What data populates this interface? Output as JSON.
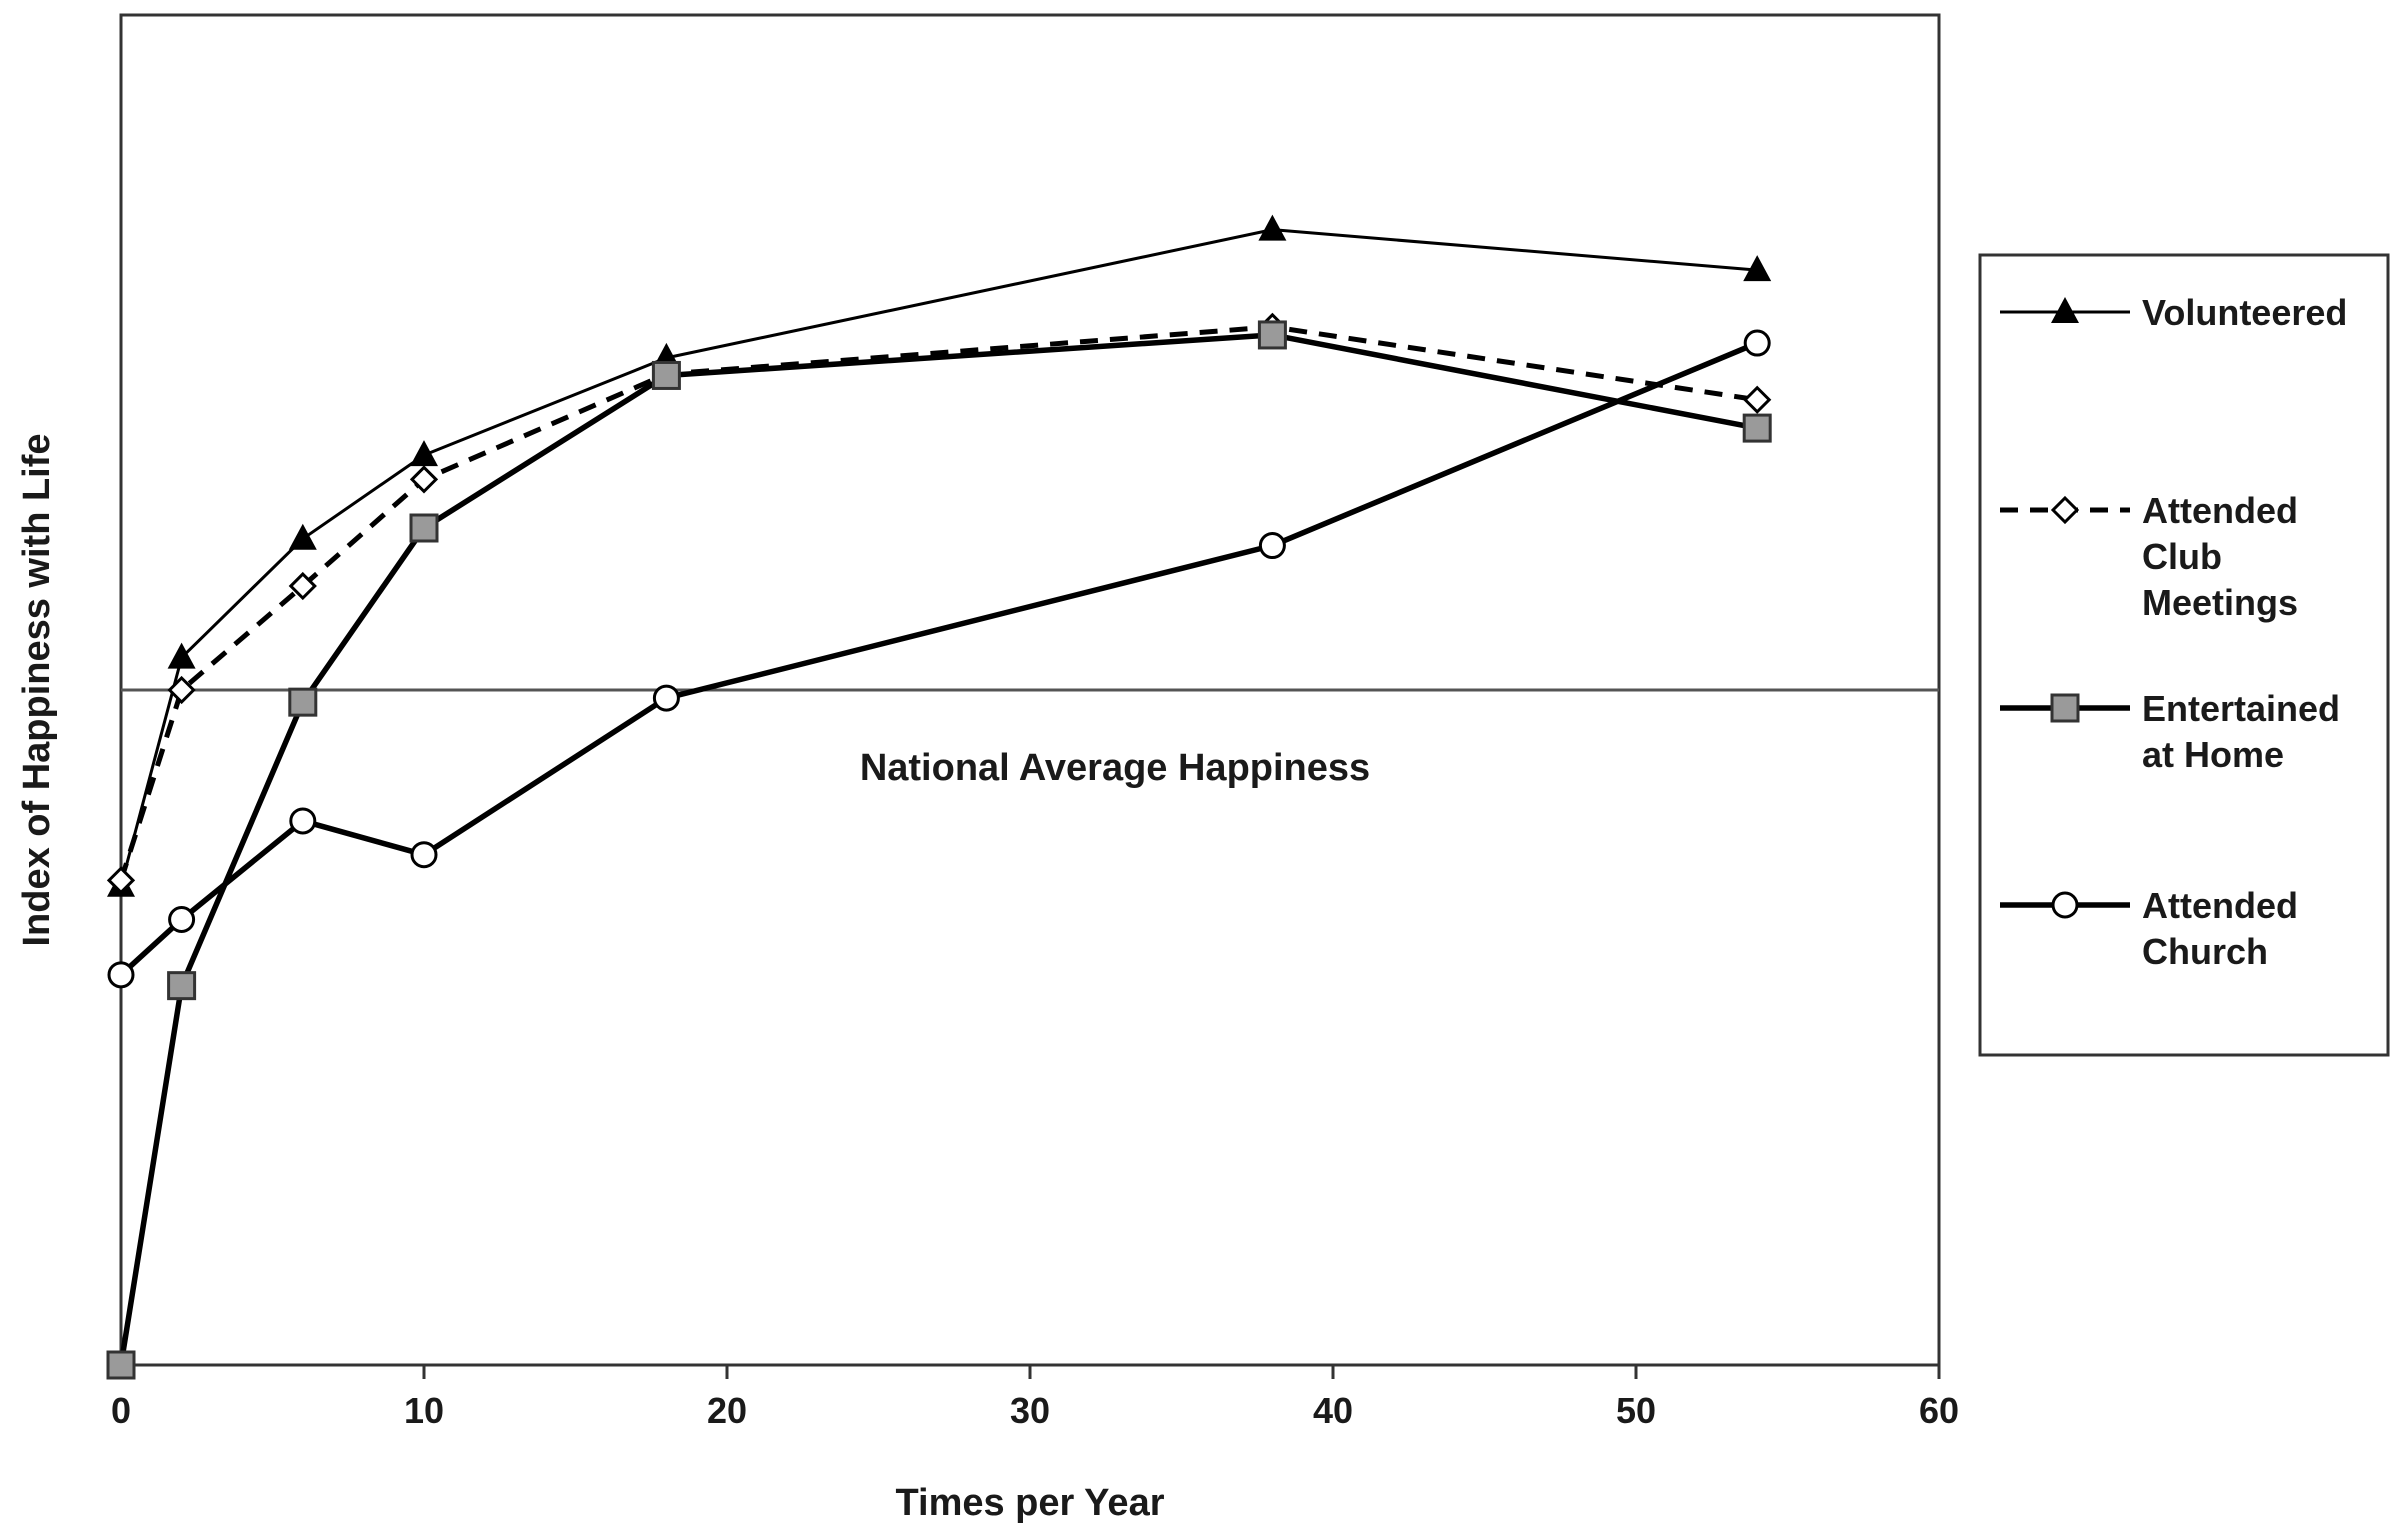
{
  "chart_data": {
    "type": "line",
    "title": "",
    "xlabel": "Times per Year",
    "ylabel": "Index of Happiness with Life",
    "xlim": [
      0,
      60
    ],
    "xticks": [
      0,
      10,
      20,
      30,
      40,
      50,
      60
    ],
    "ylim": [
      0,
      1
    ],
    "y_ticks_shown": false,
    "grid": false,
    "legend_position": "right",
    "reference_line": {
      "label": "National Average Happiness",
      "y": 0.5
    },
    "series": [
      {
        "name": "Volunteered",
        "marker": "triangle-filled",
        "line": "thin-solid",
        "color": "#000000",
        "x": [
          0,
          2,
          6,
          10,
          18,
          38,
          54
        ],
        "y": [
          0.355,
          0.524,
          0.612,
          0.674,
          0.746,
          0.841,
          0.811
        ]
      },
      {
        "name": "Attended\nClub\nMeetings",
        "marker": "diamond-open",
        "line": "dashed",
        "color": "#000000",
        "x": [
          0,
          2,
          6,
          10,
          18,
          38,
          54
        ],
        "y": [
          0.359,
          0.5,
          0.577,
          0.656,
          0.734,
          0.769,
          0.715
        ]
      },
      {
        "name": "Entertained\nat Home",
        "marker": "square-gray",
        "line": "thick-solid",
        "color": "#000000",
        "x": [
          0,
          2,
          6,
          10,
          18,
          38,
          54
        ],
        "y": [
          0.0,
          0.281,
          0.491,
          0.62,
          0.733,
          0.763,
          0.694
        ]
      },
      {
        "name": "Attended\nChurch",
        "marker": "circle-open",
        "line": "thick-solid",
        "color": "#000000",
        "x": [
          0,
          2,
          6,
          10,
          18,
          38,
          54
        ],
        "y": [
          0.289,
          0.33,
          0.403,
          0.378,
          0.494,
          0.607,
          0.757
        ]
      }
    ]
  }
}
